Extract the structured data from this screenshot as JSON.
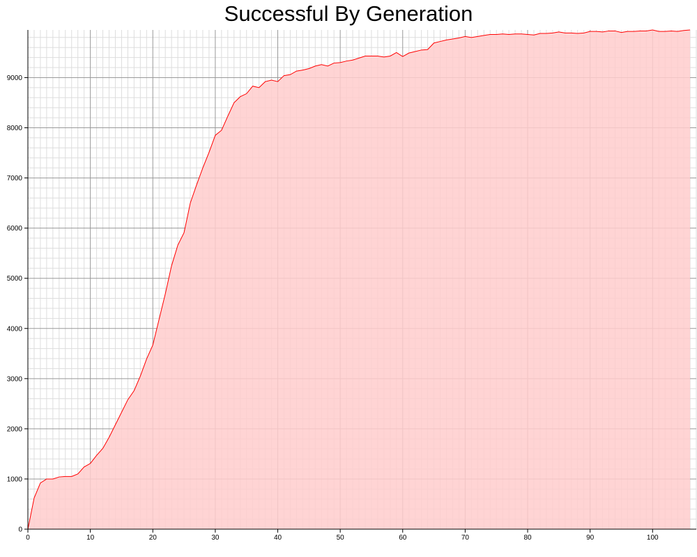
{
  "chart_data": {
    "type": "area",
    "title": "Successful By Generation",
    "xlabel": "",
    "ylabel": "",
    "xlim": [
      0,
      107
    ],
    "ylim": [
      0,
      9950
    ],
    "x_ticks": [
      0,
      10,
      20,
      30,
      40,
      50,
      60,
      70,
      80,
      90,
      100
    ],
    "x_tick_labels": [
      "0",
      "10",
      "20",
      "30",
      "40",
      "50",
      "60",
      "70",
      "80",
      "90",
      "100"
    ],
    "y_ticks": [
      0,
      1000,
      2000,
      3000,
      4000,
      5000,
      6000,
      7000,
      8000,
      9000
    ],
    "y_tick_labels": [
      "0",
      "1000",
      "2000",
      "3000",
      "4000",
      "5000",
      "6000",
      "7000",
      "8000",
      "9000"
    ],
    "grid": true,
    "legend": "none",
    "colors": {
      "line": "#ff0000",
      "fill": "#ffcccc",
      "major_grid": "#999999",
      "minor_grid": "#dddddd",
      "axis": "#000000"
    },
    "series": [
      {
        "x": [
          0,
          1,
          2,
          3,
          4,
          5,
          6,
          7,
          8,
          9,
          10,
          11,
          12,
          13,
          14,
          15,
          16,
          17,
          18,
          19,
          20,
          21,
          22,
          23,
          24,
          25,
          26,
          27,
          28,
          29,
          30,
          31,
          32,
          33,
          34,
          35,
          36,
          37,
          38,
          39,
          40,
          41,
          42,
          43,
          44,
          45,
          46,
          47,
          48,
          49,
          50,
          51,
          52,
          53,
          54,
          55,
          56,
          57,
          58,
          59,
          60,
          61,
          62,
          63,
          64,
          65,
          66,
          67,
          68,
          69,
          70,
          71,
          72,
          73,
          74,
          75,
          76,
          77,
          78,
          79,
          80,
          81,
          82,
          83,
          84,
          85,
          86,
          87,
          88,
          89,
          90,
          91,
          92,
          93,
          94,
          95,
          96,
          97,
          98,
          99,
          100,
          101,
          102,
          103,
          104,
          105,
          106
        ],
        "values": [
          0,
          620,
          920,
          1000,
          1000,
          1040,
          1050,
          1050,
          1100,
          1240,
          1310,
          1470,
          1610,
          1830,
          2080,
          2330,
          2580,
          2760,
          3050,
          3390,
          3670,
          4180,
          4690,
          5250,
          5660,
          5910,
          6500,
          6860,
          7200,
          7510,
          7850,
          7950,
          8230,
          8500,
          8620,
          8680,
          8830,
          8800,
          8920,
          8950,
          8920,
          9040,
          9060,
          9130,
          9150,
          9180,
          9230,
          9260,
          9230,
          9290,
          9300,
          9330,
          9350,
          9390,
          9430,
          9430,
          9430,
          9410,
          9430,
          9500,
          9420,
          9490,
          9520,
          9550,
          9560,
          9690,
          9720,
          9750,
          9770,
          9790,
          9820,
          9800,
          9820,
          9840,
          9860,
          9860,
          9870,
          9860,
          9870,
          9870,
          9860,
          9850,
          9880,
          9880,
          9890,
          9910,
          9890,
          9890,
          9880,
          9890,
          9920,
          9920,
          9910,
          9930,
          9930,
          9900,
          9920,
          9920,
          9930,
          9930,
          9950,
          9920,
          9920,
          9930,
          9920,
          9940,
          9950
        ]
      }
    ]
  }
}
